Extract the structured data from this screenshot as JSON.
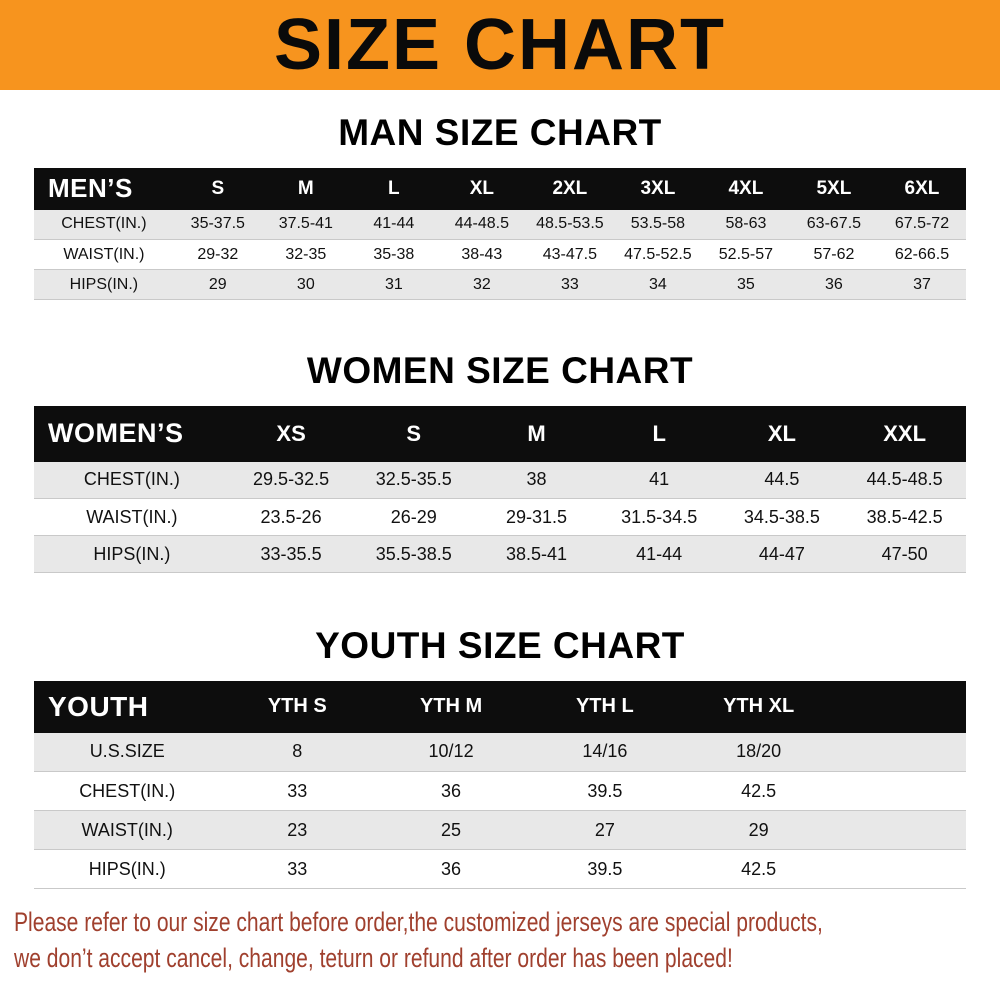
{
  "banner": {
    "title": "SIZE CHART"
  },
  "colors": {
    "banner_bg": "#f7941e",
    "header_bg": "#0d0d0d",
    "header_text": "#ffffff",
    "row_alt": "#e8e8e8",
    "row_line": "#c9c9c9",
    "footer_text": "#a0402e"
  },
  "chart_data": [
    {
      "type": "table",
      "name": "mens-size-table",
      "title": "MAN SIZE CHART",
      "corner_label": "MEN’S",
      "columns": [
        "S",
        "M",
        "L",
        "XL",
        "2XL",
        "3XL",
        "4XL",
        "5XL",
        "6XL"
      ],
      "rows": [
        {
          "label": "CHEST(IN.)",
          "values": [
            "35-37.5",
            "37.5-41",
            "41-44",
            "44-48.5",
            "48.5-53.5",
            "53.5-58",
            "58-63",
            "63-67.5",
            "67.5-72"
          ]
        },
        {
          "label": "WAIST(IN.)",
          "values": [
            "29-32",
            "32-35",
            "35-38",
            "38-43",
            "43-47.5",
            "47.5-52.5",
            "52.5-57",
            "57-62",
            "62-66.5"
          ]
        },
        {
          "label": "HIPS(IN.)",
          "values": [
            "29",
            "30",
            "31",
            "32",
            "33",
            "34",
            "35",
            "36",
            "37"
          ]
        }
      ],
      "has_trailing_space": false
    },
    {
      "type": "table",
      "name": "womens-size-table",
      "title": "WOMEN SIZE CHART",
      "corner_label": "WOMEN’S",
      "columns": [
        "XS",
        "S",
        "M",
        "L",
        "XL",
        "XXL"
      ],
      "rows": [
        {
          "label": "CHEST(IN.)",
          "values": [
            "29.5-32.5",
            "32.5-35.5",
            "38",
            "41",
            "44.5",
            "44.5-48.5"
          ]
        },
        {
          "label": "WAIST(IN.)",
          "values": [
            "23.5-26",
            "26-29",
            "29-31.5",
            "31.5-34.5",
            "34.5-38.5",
            "38.5-42.5"
          ]
        },
        {
          "label": "HIPS(IN.)",
          "values": [
            "33-35.5",
            "35.5-38.5",
            "38.5-41",
            "41-44",
            "44-47",
            "47-50"
          ]
        }
      ],
      "has_trailing_space": false
    },
    {
      "type": "table",
      "name": "youth-size-table",
      "title": "YOUTH SIZE CHART",
      "corner_label": "YOUTH",
      "columns": [
        "YTH S",
        "YTH M",
        "YTH L",
        "YTH XL"
      ],
      "rows": [
        {
          "label": "U.S.SIZE",
          "values": [
            "8",
            "10/12",
            "14/16",
            "18/20"
          ]
        },
        {
          "label": "CHEST(IN.)",
          "values": [
            "33",
            "36",
            "39.5",
            "42.5"
          ]
        },
        {
          "label": "WAIST(IN.)",
          "values": [
            "23",
            "25",
            "27",
            "29"
          ]
        },
        {
          "label": "HIPS(IN.)",
          "values": [
            "33",
            "36",
            "39.5",
            "42.5"
          ]
        }
      ],
      "has_trailing_space": true
    }
  ],
  "footer": {
    "line1": "Please refer to our size chart before order,the customized jerseys are special products,",
    "line2": "we don’t accept cancel, change, teturn or refund after order has been placed!"
  }
}
